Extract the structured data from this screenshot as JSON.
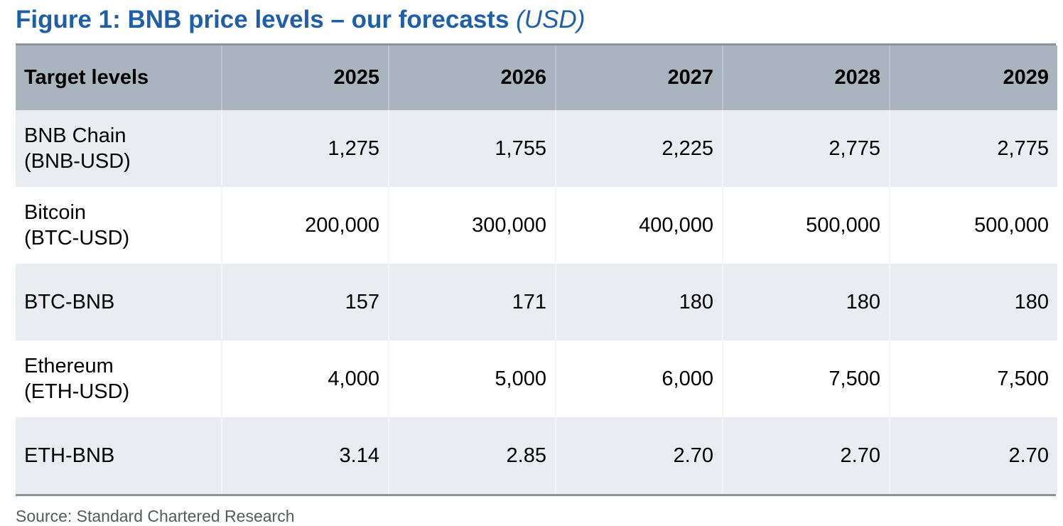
{
  "title": {
    "main": "Figure 1: BNB price levels – our forecasts",
    "unit": "(USD)"
  },
  "chart_data": {
    "type": "table",
    "columns": [
      "Target levels",
      "2025",
      "2026",
      "2027",
      "2028",
      "2029"
    ],
    "rows": [
      {
        "name": "BNB Chain",
        "ticker": "(BNB-USD)",
        "values": [
          "1,275",
          "1,755",
          "2,225",
          "2,775",
          "2,775"
        ]
      },
      {
        "name": "Bitcoin",
        "ticker": "(BTC-USD)",
        "values": [
          "200,000",
          "300,000",
          "400,000",
          "500,000",
          "500,000"
        ]
      },
      {
        "name": "BTC-BNB",
        "ticker": "",
        "values": [
          "157",
          "171",
          "180",
          "180",
          "180"
        ]
      },
      {
        "name": "Ethereum",
        "ticker": "(ETH-USD)",
        "values": [
          "4,000",
          "5,000",
          "6,000",
          "7,500",
          "7,500"
        ]
      },
      {
        "name": "ETH-BNB",
        "ticker": "",
        "values": [
          "3.14",
          "2.85",
          "2.70",
          "2.70",
          "2.70"
        ]
      }
    ]
  },
  "source": "Source: Standard Chartered Research",
  "colors": {
    "title": "#1f5fa8",
    "header_bg": "#a9b4bf",
    "band_bg": "#e9edf1",
    "rule": "#8a939b"
  }
}
